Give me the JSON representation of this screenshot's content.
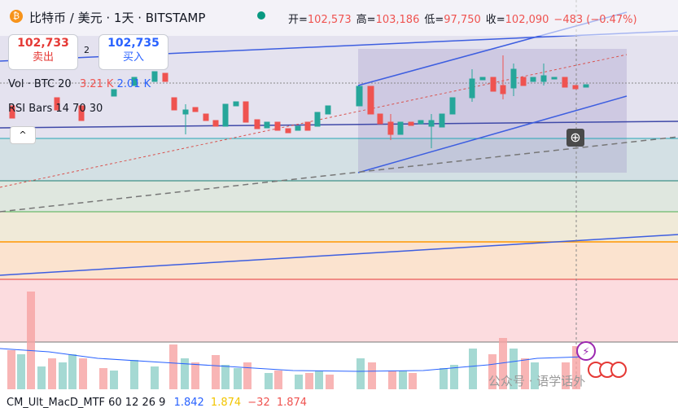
{
  "header": {
    "symbol": "比特币 / 美元 · 1天 · BITSTAMP",
    "ohlc": [
      {
        "label": "开=",
        "value": "102,573"
      },
      {
        "label": "高=",
        "value": "103,186"
      },
      {
        "label": "低=",
        "value": "97,750"
      },
      {
        "label": "收=",
        "value": "102,090"
      }
    ],
    "change": "−483 (−0.47%)"
  },
  "trade": {
    "sell_price": "102,733",
    "sell_label": "卖出",
    "spread": "2",
    "buy_price": "102,735",
    "buy_label": "买入"
  },
  "indicators": {
    "volume": {
      "label": "Vol · BTC 20",
      "values": [
        "3.21 K",
        "2.01 K"
      ]
    },
    "rsi": {
      "label": "RSI Bars 14 70 30"
    },
    "macd": {
      "label": "CM_Ult_MacD_MTF 60 12 26 9",
      "values": [
        "1.842",
        "1.874",
        "−32",
        "1.874"
      ]
    }
  },
  "watermark": "公众号 · 语学话外"
}
